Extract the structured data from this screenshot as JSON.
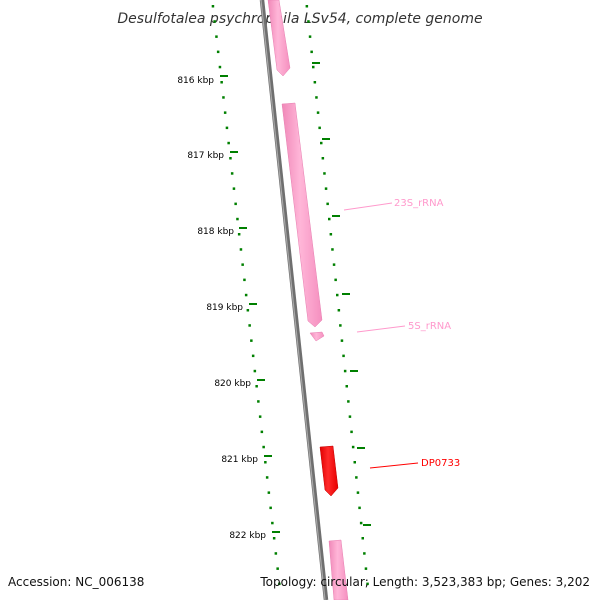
{
  "title": "Desulfotalea psychrophila LSv54, complete genome",
  "footer": {
    "accession": "Accession: NC_006138",
    "summary": "Topology: circular; Length: 3,523,383 bp; Genes: 3,202"
  },
  "ticks": [
    "816 kbp",
    "817 kbp",
    "818 kbp",
    "819 kbp",
    "820 kbp",
    "821 kbp",
    "822 kbp"
  ],
  "features": [
    {
      "label": "23S_rRNA",
      "color": "#ff99cc"
    },
    {
      "label": "5S_rRNA",
      "color": "#ff99cc"
    },
    {
      "label": "DP0733",
      "color": "#ff0000"
    }
  ],
  "colors": {
    "backbone": "#808080",
    "tick": "#008000",
    "rRNA": "#ff99cc",
    "gene": "#ff0000"
  }
}
